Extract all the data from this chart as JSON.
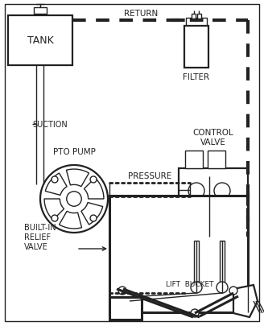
{
  "bg_color": "#ffffff",
  "line_color": "#222222",
  "labels": {
    "tank": "TANK",
    "suction": "SUCTION",
    "pto_pump": "PTO PUMP",
    "pressure": "PRESSURE",
    "return_lbl": "RETURN",
    "filter": "FILTER",
    "control_valve": "CONTROL\nVALVE",
    "built_in_relief": "BUILT-IN\nRELIEF\nVALVE",
    "lift_bucket": "LIFT  BUCKET"
  },
  "figsize": [
    3.28,
    4.06
  ],
  "dpi": 100
}
